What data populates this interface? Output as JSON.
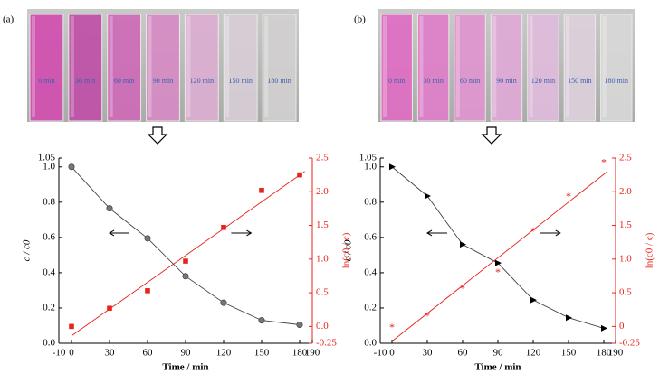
{
  "photos": [
    {
      "label": "(a)",
      "vials": [
        "0 min",
        "30 min",
        "60 min",
        "90 min",
        "120 min",
        "150 min",
        "180 min"
      ]
    },
    {
      "label": "(b)",
      "vials": [
        "0 min",
        "30 min",
        "60 min",
        "90 min",
        "120 min",
        "150 min",
        "180 min"
      ]
    }
  ],
  "chart_data": [
    {
      "type": "line",
      "xlabel": "Time / min",
      "ylabel": "c / c0",
      "y2label": "ln(c0 / c)",
      "xlim": [
        -10,
        190
      ],
      "xticks": [
        -10,
        0,
        30,
        60,
        90,
        120,
        150,
        180,
        190
      ],
      "ylim": [
        0,
        1.05
      ],
      "yticks": [
        {
          "value": 0,
          "label": "0.0"
        },
        0.2,
        0.4,
        0.6,
        0.8,
        {
          "value": 1,
          "label": "1.0"
        },
        1.05
      ],
      "y2lim": [
        -0.25,
        2.5
      ],
      "y2ticks": [
        -0.25,
        {
          "value": 0,
          "label": "0.0"
        },
        0.5,
        {
          "value": 1,
          "label": "1.0"
        },
        1.5,
        {
          "value": 2,
          "label": "2.0"
        },
        2.5
      ],
      "y2color": "#e8231c",
      "series": [
        {
          "mode": "line+markers",
          "marker": "circle",
          "color": "#777777",
          "line_color": "#444444",
          "x": [
            0,
            30,
            60,
            90,
            120,
            150,
            180
          ],
          "values": [
            1.0,
            0.765,
            0.595,
            0.38,
            0.23,
            0.13,
            0.105
          ]
        },
        {
          "mode": "markers",
          "marker": "square",
          "color": "#e8231c",
          "axis": "y2",
          "x": [
            0,
            30,
            60,
            90,
            120,
            150,
            180
          ],
          "values": [
            0.0,
            0.27,
            0.53,
            0.97,
            1.47,
            2.02,
            2.25
          ]
        },
        {
          "mode": "line",
          "color": "#e8231c",
          "axis": "y2",
          "x": [
            0,
            184
          ],
          "values": [
            -0.14,
            2.3
          ]
        }
      ]
    },
    {
      "type": "line",
      "xlabel": "Time / min",
      "ylabel": "c / c0",
      "y2label": "ln(c0 / c)",
      "xlim": [
        -10,
        190
      ],
      "xticks": [
        -10,
        0,
        30,
        60,
        90,
        120,
        150,
        180,
        190
      ],
      "ylim": [
        0,
        1.05
      ],
      "yticks": [
        {
          "value": 0,
          "label": "0.0"
        },
        0.2,
        0.4,
        0.6,
        0.8,
        {
          "value": 1,
          "label": "1.0"
        },
        1.05
      ],
      "y2lim": [
        -0.25,
        2.5
      ],
      "y2ticks": [
        -0.25,
        0,
        0.5,
        {
          "value": 1,
          "label": "1.0"
        },
        1.5,
        {
          "value": 2,
          "label": "2.0"
        },
        2.5
      ],
      "y2color": "#e8231c",
      "series": [
        {
          "mode": "line+markers",
          "marker": "triangle",
          "color": "#000000",
          "line_color": "#444444",
          "x": [
            0,
            30,
            60,
            90,
            120,
            150,
            180
          ],
          "values": [
            1.0,
            0.835,
            0.56,
            0.455,
            0.245,
            0.145,
            0.085
          ]
        },
        {
          "mode": "markers",
          "marker": "star",
          "color": "#e8231c",
          "axis": "y2",
          "x": [
            0,
            30,
            60,
            90,
            120,
            150,
            180
          ],
          "values": [
            0.0,
            0.17,
            0.58,
            0.82,
            1.43,
            1.95,
            2.45
          ]
        },
        {
          "mode": "line",
          "color": "#e8231c",
          "axis": "y2",
          "x": [
            0,
            183
          ],
          "values": [
            -0.22,
            2.3
          ]
        }
      ]
    }
  ]
}
